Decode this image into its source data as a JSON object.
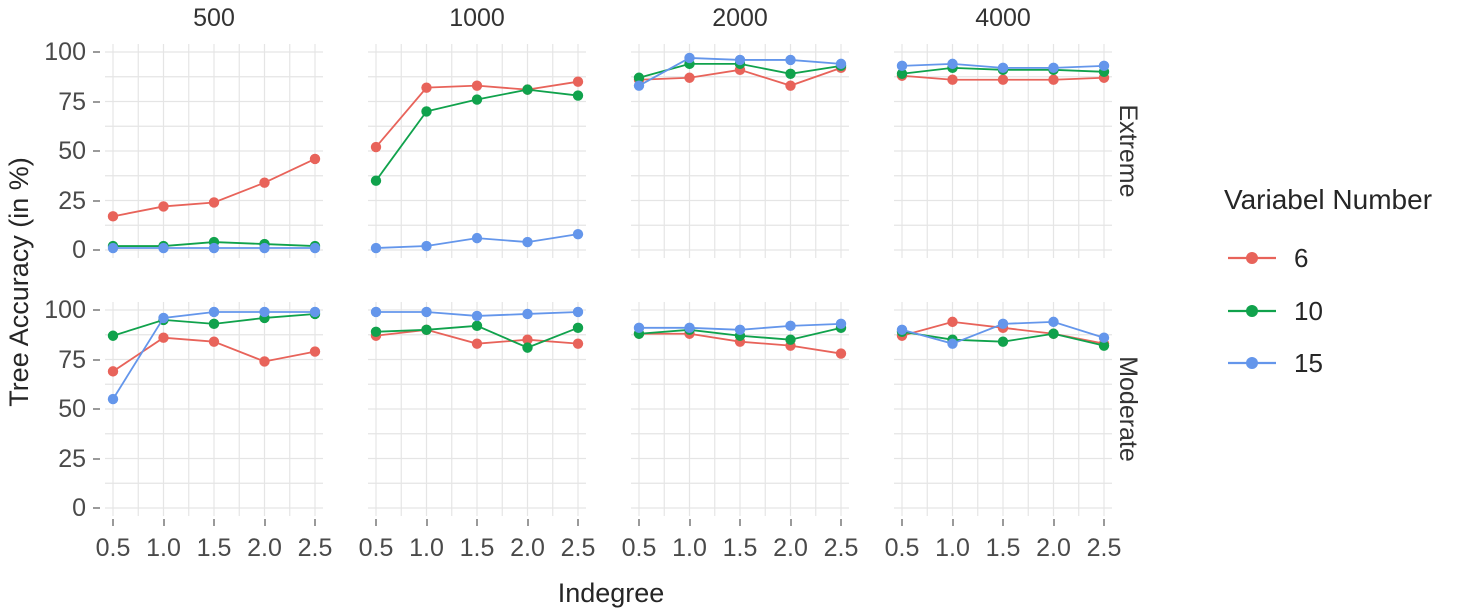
{
  "chart_data": {
    "type": "line",
    "title": "",
    "xlabel": "Indegree",
    "ylabel": "Tree Accuracy (in %)",
    "x": [
      0.5,
      1.0,
      1.5,
      2.0,
      2.5
    ],
    "x_tick_labels": [
      "0.5",
      "1.0",
      "1.5",
      "2.0",
      "2.5"
    ],
    "y_ticks": [
      "100",
      "75",
      "50",
      "25",
      "0"
    ],
    "ylim": [
      0,
      100
    ],
    "grid": "on",
    "col_facets": [
      "500",
      "1000",
      "2000",
      "4000"
    ],
    "row_facets": [
      "Extreme",
      "Moderate"
    ],
    "legend": {
      "title": "Variabel Number",
      "position": "right",
      "entries": [
        {
          "label": "6",
          "color": "#E8635A"
        },
        {
          "label": "10",
          "color": "#10A24C"
        },
        {
          "label": "15",
          "color": "#6496EB"
        }
      ]
    },
    "panels": [
      {
        "row": "Extreme",
        "col": "500",
        "series": [
          {
            "name": "6",
            "values": [
              17,
              22,
              24,
              34,
              46
            ]
          },
          {
            "name": "10",
            "values": [
              2,
              2,
              4,
              3,
              2
            ]
          },
          {
            "name": "15",
            "values": [
              1,
              1,
              1,
              1,
              1
            ]
          }
        ]
      },
      {
        "row": "Extreme",
        "col": "1000",
        "series": [
          {
            "name": "6",
            "values": [
              52,
              82,
              83,
              81,
              85
            ]
          },
          {
            "name": "10",
            "values": [
              35,
              70,
              76,
              81,
              78
            ]
          },
          {
            "name": "15",
            "values": [
              1,
              2,
              6,
              4,
              8
            ]
          }
        ]
      },
      {
        "row": "Extreme",
        "col": "2000",
        "series": [
          {
            "name": "6",
            "values": [
              86,
              87,
              91,
              83,
              92
            ]
          },
          {
            "name": "10",
            "values": [
              87,
              94,
              94,
              89,
              93
            ]
          },
          {
            "name": "15",
            "values": [
              83,
              97,
              96,
              96,
              94
            ]
          }
        ]
      },
      {
        "row": "Extreme",
        "col": "4000",
        "series": [
          {
            "name": "6",
            "values": [
              88,
              86,
              86,
              86,
              87
            ]
          },
          {
            "name": "10",
            "values": [
              89,
              92,
              91,
              91,
              90
            ]
          },
          {
            "name": "15",
            "values": [
              93,
              94,
              92,
              92,
              93
            ]
          }
        ]
      },
      {
        "row": "Moderate",
        "col": "500",
        "series": [
          {
            "name": "6",
            "values": [
              69,
              86,
              84,
              74,
              79
            ]
          },
          {
            "name": "10",
            "values": [
              87,
              95,
              93,
              96,
              98
            ]
          },
          {
            "name": "15",
            "values": [
              55,
              96,
              99,
              99,
              99
            ]
          }
        ]
      },
      {
        "row": "Moderate",
        "col": "1000",
        "series": [
          {
            "name": "6",
            "values": [
              87,
              90,
              83,
              85,
              83
            ]
          },
          {
            "name": "10",
            "values": [
              89,
              90,
              92,
              81,
              91
            ]
          },
          {
            "name": "15",
            "values": [
              99,
              99,
              97,
              98,
              99
            ]
          }
        ]
      },
      {
        "row": "Moderate",
        "col": "2000",
        "series": [
          {
            "name": "6",
            "values": [
              88,
              88,
              84,
              82,
              78
            ]
          },
          {
            "name": "10",
            "values": [
              88,
              90,
              87,
              85,
              91
            ]
          },
          {
            "name": "15",
            "values": [
              91,
              91,
              90,
              92,
              93
            ]
          }
        ]
      },
      {
        "row": "Moderate",
        "col": "4000",
        "series": [
          {
            "name": "6",
            "values": [
              87,
              94,
              91,
              88,
              83
            ]
          },
          {
            "name": "10",
            "values": [
              89,
              85,
              84,
              88,
              82
            ]
          },
          {
            "name": "15",
            "values": [
              90,
              83,
              93,
              94,
              86
            ]
          }
        ]
      }
    ]
  },
  "colors": {
    "6": "#E8635A",
    "10": "#10A24C",
    "15": "#6496EB",
    "grid": "#E5E5E5"
  }
}
